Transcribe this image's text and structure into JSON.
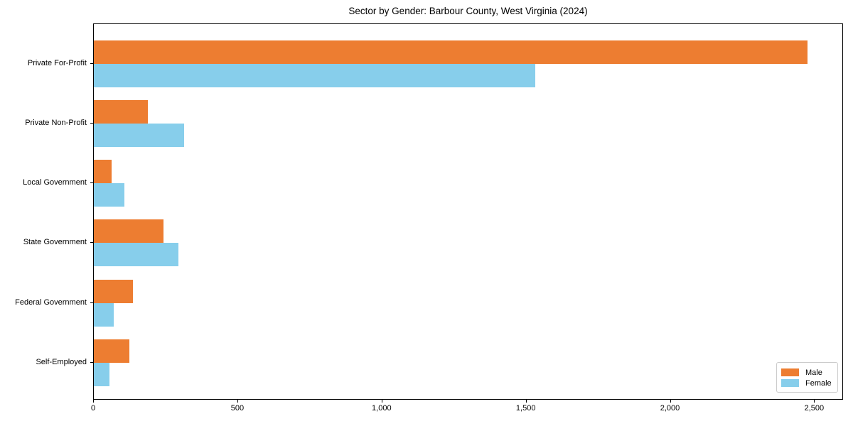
{
  "title": "Sector by Gender: Barbour County, West Virginia (2024)",
  "colors": {
    "male": "#ED7D31",
    "female": "#87CEEB",
    "spine": "#000000",
    "background": "#ffffff",
    "legend_border": "#cccccc"
  },
  "legend": {
    "position": "lower right",
    "male_label": "Male",
    "female_label": "Female"
  },
  "chart_data": {
    "type": "bar",
    "orientation": "horizontal",
    "title": "Sector by Gender: Barbour County, West Virginia (2024)",
    "xlabel": "",
    "ylabel": "",
    "grid": false,
    "legend_position": "lower right",
    "categories": [
      "Private For-Profit",
      "Private Non-Profit",
      "Local Government",
      "State Government",
      "Federal Government",
      "Self-Employed"
    ],
    "series": [
      {
        "name": "Male",
        "color": "#ED7D31",
        "values": [
          2475,
          187,
          62,
          242,
          136,
          123
        ]
      },
      {
        "name": "Female",
        "color": "#87CEEB",
        "values": [
          1530,
          313,
          106,
          293,
          69,
          54
        ]
      }
    ],
    "xlim": [
      0,
      2600
    ],
    "xticks": [
      0,
      500,
      1000,
      1500,
      2000,
      2500
    ],
    "xtick_labels": [
      "0",
      "500",
      "1,000",
      "1,500",
      "2,000",
      "2,500"
    ]
  }
}
